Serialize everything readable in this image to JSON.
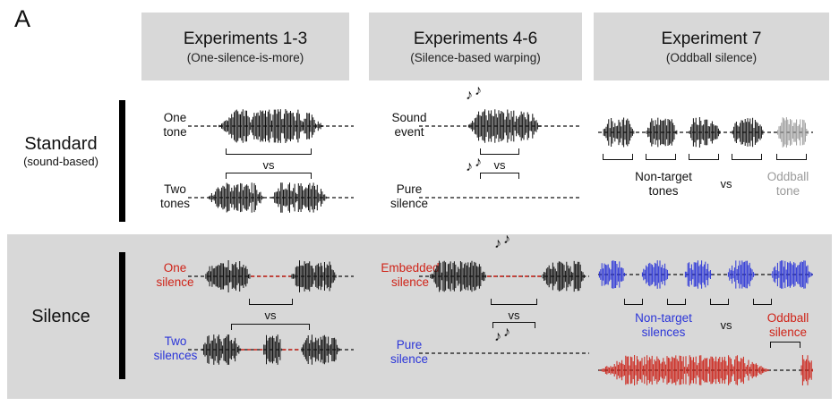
{
  "panel_label": "A",
  "columns": [
    {
      "title": "Experiments 1-3",
      "subtitle": "(One-silence-is-more)"
    },
    {
      "title": "Experiments 4-6",
      "subtitle": "(Silence-based warping)"
    },
    {
      "title": "Experiment 7",
      "subtitle": "(Oddball silence)"
    }
  ],
  "rows": {
    "standard": {
      "label": "Standard",
      "sublabel": "(sound-based)"
    },
    "silence": {
      "label": "Silence"
    }
  },
  "labels": {
    "one_tone": "One tone",
    "two_tones": "Two tones",
    "sound_event": "Sound event",
    "pure_silence_standard": "Pure silence",
    "pure_silence_silence": "Pure silence",
    "vs": "vs",
    "non_target_tones": "Non-target tones",
    "oddball_tone": "Oddball tone",
    "one_silence": "One silence",
    "two_silences": "Two silences",
    "embedded_silence": "Embedded silence",
    "non_target_silences": "Non-target silences",
    "oddball_silence": "Oddball silence"
  },
  "notes_icon": "♪",
  "colors": {
    "red": "#cf2318",
    "blue": "#2b35d8",
    "gray_waveform": "#9a9a9a",
    "black": "#111111",
    "panel_background": "#d8d8d8"
  }
}
